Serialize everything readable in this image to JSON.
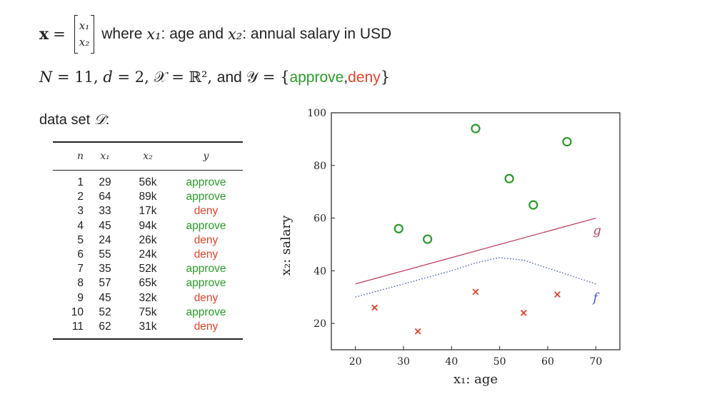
{
  "header": {
    "x_symbol": "x",
    "eq": "=",
    "vec_top": "x₁",
    "vec_bottom": "x₂",
    "where": "where",
    "x1": "x₁",
    "x1_desc": ": age and",
    "x2": "x₂",
    "x2_desc": ": annual salary in USD"
  },
  "params": {
    "N": "N",
    "N_eq": " = 11, ",
    "d": "d",
    "d_eq": " = 2, ",
    "X": "𝒳",
    "X_eq": " = ℝ², ",
    "and": "and",
    "Y": "𝒴",
    "Y_eq_open": " = {",
    "approve": "approve",
    "comma": ",",
    "deny": "deny",
    "close": "}"
  },
  "dataset_label": "data set",
  "dataset_symbol": "𝒟",
  "dataset_colon": ":",
  "table": {
    "headers": [
      "n",
      "x₁",
      "x₂",
      "y"
    ],
    "rows": [
      {
        "n": "1",
        "x1": "29",
        "x2": "56k",
        "y": "approve"
      },
      {
        "n": "2",
        "x1": "64",
        "x2": "89k",
        "y": "approve"
      },
      {
        "n": "3",
        "x1": "33",
        "x2": "17k",
        "y": "deny"
      },
      {
        "n": "4",
        "x1": "45",
        "x2": "94k",
        "y": "approve"
      },
      {
        "n": "5",
        "x1": "24",
        "x2": "26k",
        "y": "deny"
      },
      {
        "n": "6",
        "x1": "55",
        "x2": "24k",
        "y": "deny"
      },
      {
        "n": "7",
        "x1": "35",
        "x2": "52k",
        "y": "approve"
      },
      {
        "n": "8",
        "x1": "57",
        "x2": "65k",
        "y": "approve"
      },
      {
        "n": "9",
        "x1": "45",
        "x2": "32k",
        "y": "deny"
      },
      {
        "n": "10",
        "x1": "52",
        "x2": "75k",
        "y": "approve"
      },
      {
        "n": "11",
        "x1": "62",
        "x2": "31k",
        "y": "deny"
      }
    ]
  },
  "colors": {
    "approve": "#2a9a2a",
    "deny": "#e0442a",
    "g_line": "#c04060",
    "f_curve": "#4a5ad0",
    "text": "#222222"
  },
  "chart_data": {
    "type": "scatter",
    "xlabel": "x₁: age",
    "ylabel": "x₂: salary",
    "xlim": [
      15,
      75
    ],
    "ylim": [
      10,
      100
    ],
    "xticks": [
      20,
      30,
      40,
      50,
      60,
      70
    ],
    "yticks": [
      20,
      40,
      60,
      80,
      100
    ],
    "grid": false,
    "series": [
      {
        "name": "approve",
        "marker": "circle",
        "color": "#2a9a2a",
        "x": [
          29,
          64,
          45,
          35,
          57,
          52
        ],
        "y": [
          56,
          89,
          94,
          52,
          65,
          75
        ]
      },
      {
        "name": "deny",
        "marker": "x",
        "color": "#e0442a",
        "x": [
          33,
          24,
          55,
          45,
          62
        ],
        "y": [
          17,
          26,
          24,
          32,
          31
        ]
      }
    ],
    "lines": [
      {
        "name": "g",
        "style": "solid",
        "color": "#c04060",
        "x": [
          20,
          70
        ],
        "y": [
          35,
          60
        ]
      },
      {
        "name": "f",
        "style": "dotted",
        "color": "#4a5ad0",
        "x": [
          20,
          30,
          40,
          45,
          50,
          55,
          60,
          65,
          70
        ],
        "y": [
          30,
          35,
          40,
          43,
          45,
          44,
          41,
          38,
          35
        ]
      }
    ],
    "curve_labels": {
      "g": "g",
      "f": "f"
    }
  }
}
